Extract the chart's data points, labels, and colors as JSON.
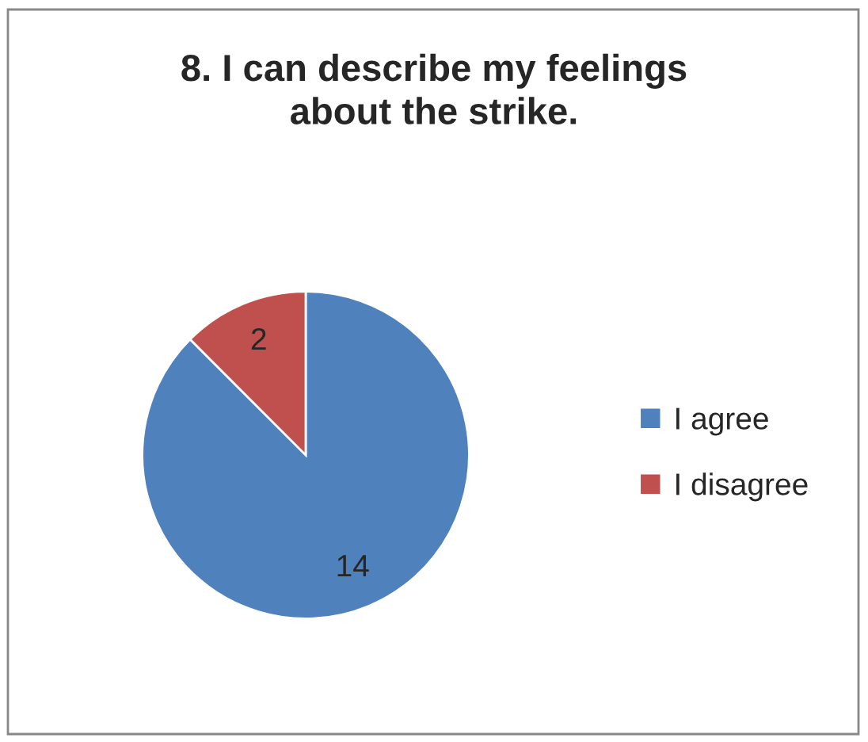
{
  "chart_data": {
    "type": "pie",
    "title": "8. I can describe my feelings\nabout the strike.",
    "categories": [
      "I agree",
      "I disagree"
    ],
    "values": [
      14,
      2
    ],
    "colors": [
      "#4f81bd",
      "#c0504d"
    ],
    "data_labels": true,
    "legend": "right"
  }
}
